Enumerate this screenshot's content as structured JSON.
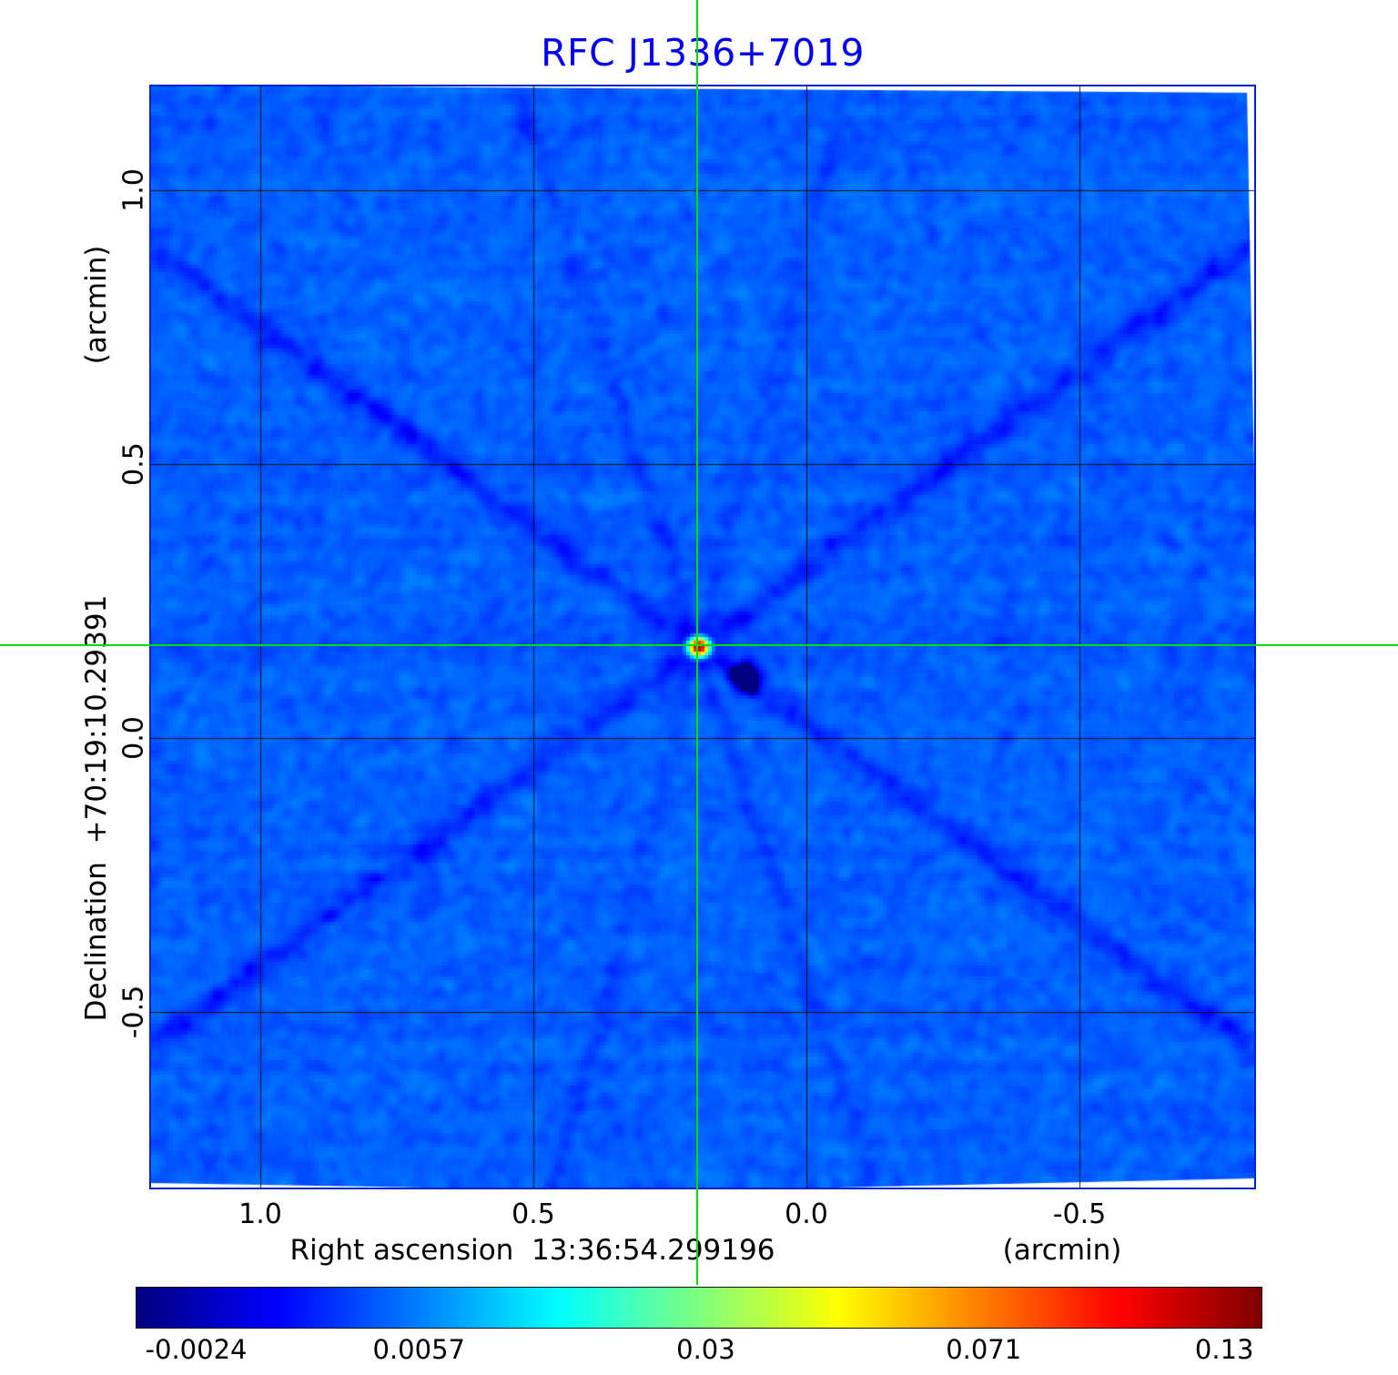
{
  "figure": {
    "title": "RFC J1336+7019"
  },
  "chart_data": {
    "type": "heatmap",
    "title": "RFC J1336+7019",
    "xlabel": "Right ascension  13:36:54.299196",
    "x_unit": "(arcmin)",
    "ylabel": "Declination  +70:19:10.29391",
    "y_unit": "(arcmin)",
    "x_tick_labels": [
      "1.0",
      "0.5",
      "0.0",
      "-0.5"
    ],
    "x_tick_values": [
      1.0,
      0.5,
      0.0,
      -0.5
    ],
    "y_tick_labels": [
      "1.0",
      "0.5",
      "0.0",
      "-0.5"
    ],
    "y_tick_values": [
      1.0,
      0.5,
      0.0,
      -0.5
    ],
    "x_range_arcmin": [
      1.2,
      -0.82
    ],
    "y_range_arcmin": [
      1.19,
      -0.82
    ],
    "grid": true,
    "legend": "none",
    "colormap": "jet",
    "intensity_scale": "sqrt",
    "background_level": 0.004,
    "noise_level": 0.0012,
    "source": {
      "ra_offset_arcmin": 0.2,
      "dec_offset_arcmin": 0.17,
      "peak": 0.13,
      "negative_sidelobe": -0.006
    },
    "sidelobe_rays": [
      {
        "angle_deg": 36,
        "width": 2.5,
        "amp": 0.0022
      },
      {
        "angle_deg": -36,
        "width": 2.5,
        "amp": 0.0022
      },
      {
        "angle_deg": 72,
        "width": 2.0,
        "amp": 0.0012
      },
      {
        "angle_deg": -75,
        "width": 2.0,
        "amp": 0.001
      },
      {
        "angle_deg": 0,
        "width": 4.0,
        "amp": 0.0007
      }
    ],
    "crosshair": {
      "ra_arcmin": 0.2,
      "dec_arcmin": 0.17
    },
    "colorbar": {
      "tick_labels": [
        "-0.0024",
        "0.0057",
        "0.03",
        "0.071",
        "0.13"
      ],
      "tick_positions": [
        0.053,
        0.251,
        0.506,
        0.753,
        0.967
      ]
    },
    "colors": {
      "title": "#0000f0",
      "crosshair": "#00dd00",
      "frame": "#0022cc",
      "grid": "#000000",
      "labels": "#000000"
    }
  }
}
